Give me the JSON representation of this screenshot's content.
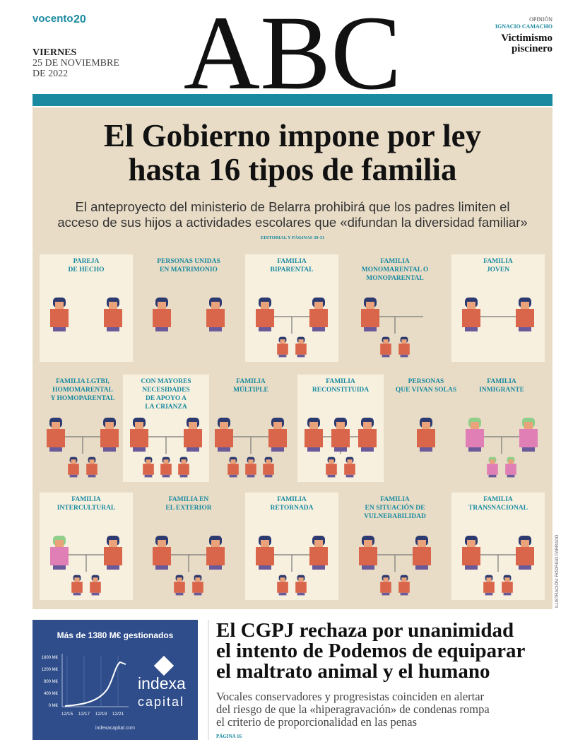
{
  "masthead": {
    "brand": "vocento",
    "brand_mark": "20",
    "logo": "ABC",
    "date": [
      "VIERNES",
      "25 DE NOVIEMBRE",
      "DE 2022"
    ],
    "opinion": {
      "section": "OPINIÓN",
      "author": "IGNACIO CAMACHO",
      "title": [
        "Victimismo",
        "piscinero"
      ]
    }
  },
  "lead": {
    "headline": [
      "El Gobierno impone por ley",
      "hasta 16 tipos de familia"
    ],
    "deck": [
      "El anteproyecto del ministerio de Belarra prohibirá que los padres limiten el",
      "acceso de sus hijos a actividades escolares que «difundan la diversidad familiar»"
    ],
    "ref": "EDITORIAL Y PÁGINAS 30-31",
    "families": [
      {
        "label": [
          "PAREJA",
          "DE HECHO"
        ]
      },
      {
        "label": [
          "PERSONAS UNIDAS",
          "EN MATRIMONIO"
        ]
      },
      {
        "label": [
          "FAMILIA",
          "BIPARENTAL"
        ]
      },
      {
        "label": [
          "FAMILIA",
          "MONOMARENTAL O",
          "MONOPARENTAL"
        ]
      },
      {
        "label": [
          "FAMILIA",
          "JOVEN"
        ]
      },
      {
        "label": [
          "FAMILIA LGTBI,",
          "HOMOMARENTAL",
          "Y HOMOPARENTAL"
        ]
      },
      {
        "label": [
          "CON MAYORES",
          "NECESIDADES",
          "DE APOYO A",
          "LA CRIANZA"
        ]
      },
      {
        "label": [
          "FAMILIA",
          "MÚLTIPLE"
        ]
      },
      {
        "label": [
          "FAMILIA",
          "RECONSTITUIDA"
        ]
      },
      {
        "label": [
          "PERSONAS",
          "QUE VIVAN SOLAS"
        ]
      },
      {
        "label": [
          "FAMILIA",
          "INMIGRANTE"
        ]
      },
      {
        "label": [
          "FAMILIA",
          "INTERCULTURAL"
        ]
      },
      {
        "label": [
          "FAMILIA EN",
          "EL EXTERIOR"
        ]
      },
      {
        "label": [
          "FAMILIA",
          "RETORNADA"
        ]
      },
      {
        "label": [
          "FAMILIA",
          "EN SITUACIÓN DE",
          "VULNERABILIDAD"
        ]
      },
      {
        "label": [
          "FAMILIA",
          "TRANSNACIONAL"
        ]
      }
    ],
    "credit": "ILUSTRACIÓN: RODRIGO PARRADO"
  },
  "ad": {
    "title": "Más de 1380 M€ gestionados",
    "yticks": [
      "1600 M€",
      "1200 M€",
      "800 M€",
      "400 M€",
      "0 M€"
    ],
    "xticks": [
      "12/15",
      "12/17",
      "12/19",
      "12/21"
    ],
    "brand": [
      "indexa",
      "capital"
    ],
    "url": "indexacapital.com"
  },
  "story": {
    "headline": [
      "El CGPJ rechaza por unanimidad",
      "el intento de Podemos de equiparar",
      "el maltrato animal y el humano"
    ],
    "deck": [
      "Vocales conservadores y progresistas coinciden en alertar",
      "del riesgo de que la «hiperagravación» de condenas rompa",
      "el criterio de proporcionalidad en las penas"
    ],
    "ref": "PÁGINA 16"
  }
}
